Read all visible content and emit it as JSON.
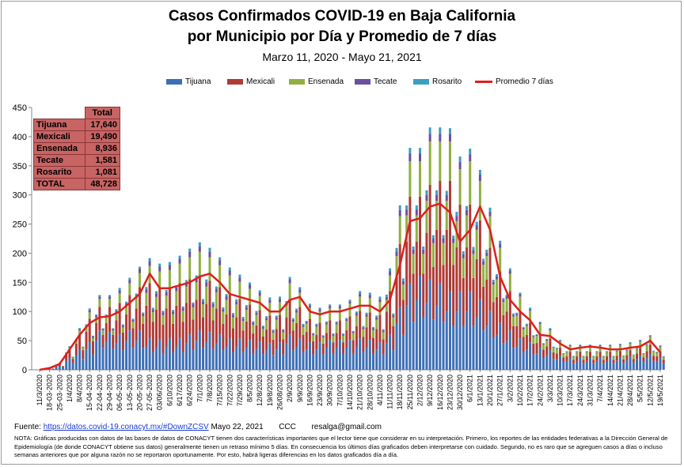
{
  "title_line1": "Casos Confirmados COVID-19 en Baja California",
  "title_line2": "por Municipio por Día y Promedio de 7 días",
  "subtitle": "Marzo 11, 2020  - Mayo 21, 2021",
  "colors": {
    "Tijuana": "#3d6fb6",
    "Mexicali": "#b03a35",
    "Ensenada": "#8fb040",
    "Tecate": "#6a50a0",
    "Rosarito": "#3a9fc0",
    "Promedio 7 días": "#e11d1d"
  },
  "totals_table": {
    "header": "Total",
    "rows": [
      {
        "label": "Tijuana",
        "value": "17,640"
      },
      {
        "label": "Mexicali",
        "value": "19,490"
      },
      {
        "label": "Ensenada",
        "value": "8,936"
      },
      {
        "label": "Tecate",
        "value": "1,581"
      },
      {
        "label": "Rosarito",
        "value": "1,081"
      },
      {
        "label": "TOTAL",
        "value": "48,728"
      }
    ]
  },
  "footer": {
    "source_label": "Fuente:",
    "source_url": "https://datos.covid-19.conacyt.mx/#DownZCSV",
    "date": "Mayo 22, 2021",
    "ccc": "CCC",
    "email": "resalga@gmail.com"
  },
  "note": "NOTA: Gráficas producidas con datos de las bases de datos de CONACYT tienen dos características importantes que el lector tiene que considerar en su interpretación. Primero, los reportes de las entidades federativas a la Dirección General de Epidemiología (de donde CONACYT obtiene sus datos) generalmente tienen un retraso mínimo 5 días. En consecuencia los últimos días graficados deben interpretarse con cuidado. Segundo, no es raro que se agreguen casos a días o incluso semanas anteriores que por alguna razón no se reportaron oportunamente. Por esto, habrá ligeras diferencias en los datos graficados día a día.",
  "chart_data": {
    "type": "bar",
    "stacked": true,
    "ylim": [
      0,
      450
    ],
    "yticks": [
      0,
      50,
      100,
      150,
      200,
      250,
      300,
      350,
      400,
      450
    ],
    "grid": false,
    "legend_position": "top",
    "xtick_labels": [
      "11/3/2020",
      "18-03-2020",
      "25-03-2020",
      "1/4/2020",
      "8/4/2020",
      "15-04-2020",
      "22-04-2020",
      "29-04-2020",
      "06-05-2020",
      "13-05-2020",
      "20-05-2020",
      "27-05-2020",
      "03/06/2020",
      "6/10/2020",
      "6/17/2020",
      "6/24/2020",
      "7/1/2020",
      "7/8/2020",
      "7/15/2020",
      "7/22/2020",
      "7/29/2020",
      "8/5/2020",
      "12/8/2020",
      "19/8/2020",
      "26/08/2020",
      "2/9/2020",
      "9/9/2020",
      "16/9/2020",
      "23/9/2020",
      "30/9/2020",
      "7/10/2020",
      "14/10/2020",
      "21/10/2020",
      "28/10/2020",
      "4/11/2020",
      "11/11/2020",
      "18/11/2020",
      "25/11/2020",
      "2/12/2020",
      "9/12/2020",
      "16/12/2020",
      "23/12/2020",
      "30/12/2020",
      "6/1/2021",
      "13/1/2021",
      "20/1/2021",
      "27/1/2021",
      "3/2/2021",
      "10/2/2021",
      "17/2/2021",
      "24/2/2021",
      "3/3/2021",
      "10/3/2021",
      "17/3/2021",
      "24/3/2021",
      "31/3/2021",
      "7/4/2021",
      "14/4/2021",
      "21/4/2021",
      "28/4/2021",
      "5/5/2021",
      "12/5/2021",
      "19/5/2021"
    ],
    "series_names": [
      "Tijuana",
      "Mexicali",
      "Ensenada",
      "Tecate",
      "Rosarito"
    ],
    "series_weekly_totals_approx": [
      {
        "name": "Tijuana",
        "values": [
          0,
          2,
          5,
          15,
          25,
          35,
          50,
          48,
          45,
          50,
          50,
          40,
          38,
          40,
          40,
          45,
          50,
          48,
          45,
          40,
          40,
          38,
          36,
          34,
          35,
          45,
          40,
          35,
          35,
          38,
          38,
          38,
          40,
          38,
          35,
          45,
          80,
          110,
          120,
          115,
          110,
          100,
          100,
          100,
          90,
          75,
          60,
          50,
          40,
          35,
          28,
          25,
          18,
          15,
          15,
          15,
          15,
          15,
          16,
          17,
          18,
          20,
          15
        ]
      },
      {
        "name": "Mexicali",
        "values": [
          0,
          1,
          3,
          10,
          20,
          30,
          30,
          32,
          40,
          45,
          55,
          70,
          65,
          65,
          70,
          70,
          70,
          65,
          60,
          55,
          50,
          45,
          40,
          35,
          35,
          45,
          40,
          30,
          25,
          25,
          25,
          30,
          35,
          35,
          35,
          55,
          80,
          110,
          100,
          120,
          130,
          140,
          110,
          110,
          100,
          80,
          65,
          50,
          35,
          25,
          18,
          15,
          10,
          8,
          8,
          8,
          8,
          8,
          8,
          8,
          10,
          12,
          8
        ]
      },
      {
        "name": "Ensenada",
        "values": [
          0,
          0,
          1,
          3,
          5,
          8,
          10,
          10,
          12,
          15,
          18,
          22,
          22,
          22,
          25,
          28,
          30,
          30,
          28,
          25,
          22,
          20,
          18,
          16,
          16,
          20,
          18,
          14,
          14,
          15,
          15,
          16,
          18,
          18,
          16,
          20,
          35,
          45,
          45,
          55,
          50,
          50,
          45,
          55,
          50,
          40,
          30,
          22,
          18,
          15,
          12,
          10,
          8,
          7,
          7,
          7,
          7,
          7,
          7,
          8,
          8,
          10,
          6
        ]
      },
      {
        "name": "Tecate",
        "values": [
          0,
          0,
          0,
          1,
          2,
          3,
          3,
          3,
          4,
          4,
          5,
          6,
          6,
          6,
          6,
          7,
          7,
          7,
          6,
          6,
          5,
          5,
          4,
          4,
          4,
          5,
          4,
          3,
          3,
          3,
          3,
          3,
          4,
          4,
          4,
          5,
          8,
          10,
          10,
          10,
          10,
          10,
          9,
          9,
          8,
          6,
          5,
          4,
          3,
          2,
          2,
          2,
          1,
          1,
          1,
          1,
          1,
          1,
          1,
          1,
          1,
          1,
          1
        ]
      },
      {
        "name": "Rosarito",
        "values": [
          0,
          0,
          0,
          1,
          1,
          2,
          2,
          2,
          3,
          3,
          3,
          4,
          4,
          4,
          4,
          4,
          5,
          5,
          4,
          4,
          4,
          3,
          3,
          3,
          3,
          3,
          3,
          2,
          2,
          2,
          2,
          2,
          3,
          3,
          3,
          4,
          6,
          7,
          7,
          8,
          8,
          7,
          7,
          7,
          6,
          5,
          4,
          3,
          2,
          2,
          1,
          1,
          1,
          1,
          1,
          1,
          1,
          1,
          1,
          1,
          1,
          1,
          1
        ]
      }
    ],
    "promedio_7_dias_weekly_approx": [
      0,
      3,
      10,
      35,
      60,
      80,
      90,
      92,
      100,
      115,
      130,
      165,
      140,
      140,
      145,
      150,
      160,
      165,
      150,
      130,
      125,
      120,
      115,
      100,
      100,
      120,
      125,
      100,
      95,
      100,
      100,
      105,
      110,
      110,
      100,
      120,
      180,
      255,
      260,
      280,
      285,
      270,
      220,
      240,
      280,
      240,
      160,
      120,
      100,
      85,
      60,
      58,
      45,
      35,
      38,
      40,
      38,
      35,
      35,
      38,
      40,
      50,
      30
    ]
  }
}
